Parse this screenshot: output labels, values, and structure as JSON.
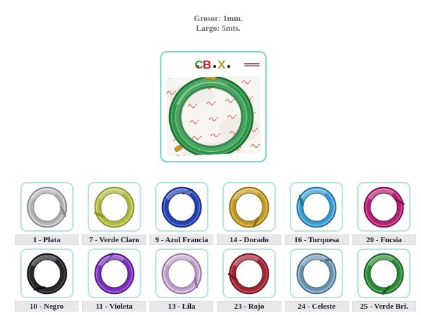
{
  "page": {
    "background": "#ffffff"
  },
  "header": {
    "line1": "Grosor: 1mm.",
    "line2": "Largo: 5mts.",
    "text_color": "#6f685e"
  },
  "product": {
    "alt": "Green aluminum wire coil in CBX plastic packaging",
    "logo": {
      "c": "C",
      "b": "B",
      "x": "X",
      "dot": "•",
      "c_color": "#2f9b36",
      "b_color": "#cc2129",
      "x_color": "#9ba823",
      "dot_color": "#1a1a1a",
      "red_dot_color": "#cc2129",
      "fineprint_color1": "#c05048",
      "fineprint_color2": "#8e939a"
    },
    "photo": {
      "border_color": "#84d4cb",
      "bag_color": "#f7f5f1",
      "bag_shade": "#e9e5de",
      "mark_color": "#d23b2f",
      "wire_dark": "#1d6e33",
      "wire_base": "#2e9447",
      "wire_mid": "#45a85e",
      "wire_light": "#9ddcae",
      "tie_color": "#c79a2e"
    }
  },
  "swatches": {
    "card_border_color": "#b5e6de",
    "label_bg": "#e8e8e8",
    "label_text_color": "#1c1c30",
    "items": [
      {
        "label": "1 - Plata",
        "base": "#b7b7bc",
        "dark": "#86868d",
        "light": "#f1f1f4"
      },
      {
        "label": "7 - Verde Claro",
        "base": "#b3bd45",
        "dark": "#87932c",
        "light": "#dfe693"
      },
      {
        "label": "9 - Azul Francia",
        "base": "#2946b8",
        "dark": "#172a80",
        "light": "#7289e0"
      },
      {
        "label": "14 - Dorado",
        "base": "#c89d2a",
        "dark": "#8f6c13",
        "light": "#eed470"
      },
      {
        "label": "16 - Turquesa",
        "base": "#3f9fd3",
        "dark": "#1f6e9e",
        "light": "#93d2ef"
      },
      {
        "label": "20 - Fucsia",
        "base": "#b52478",
        "dark": "#7e1252",
        "light": "#e470b5"
      },
      {
        "label": "10 - Negro",
        "base": "#2b2b31",
        "dark": "#101014",
        "light": "#5a5a64"
      },
      {
        "label": "11 - Violeta",
        "base": "#7b36c1",
        "dark": "#521a80",
        "light": "#b37de2"
      },
      {
        "label": "13 - Lila",
        "base": "#c4a7d0",
        "dark": "#94709d",
        "light": "#f0e4f3"
      },
      {
        "label": "23 - Rojo",
        "base": "#a32a38",
        "dark": "#701722",
        "light": "#d06b75"
      },
      {
        "label": "24 - Celeste",
        "base": "#7097b4",
        "dark": "#48708c",
        "light": "#b5d3e4"
      },
      {
        "label": "25 - Verde Bri.",
        "base": "#2f8f3a",
        "dark": "#1b5f24",
        "light": "#72c57c"
      }
    ]
  }
}
